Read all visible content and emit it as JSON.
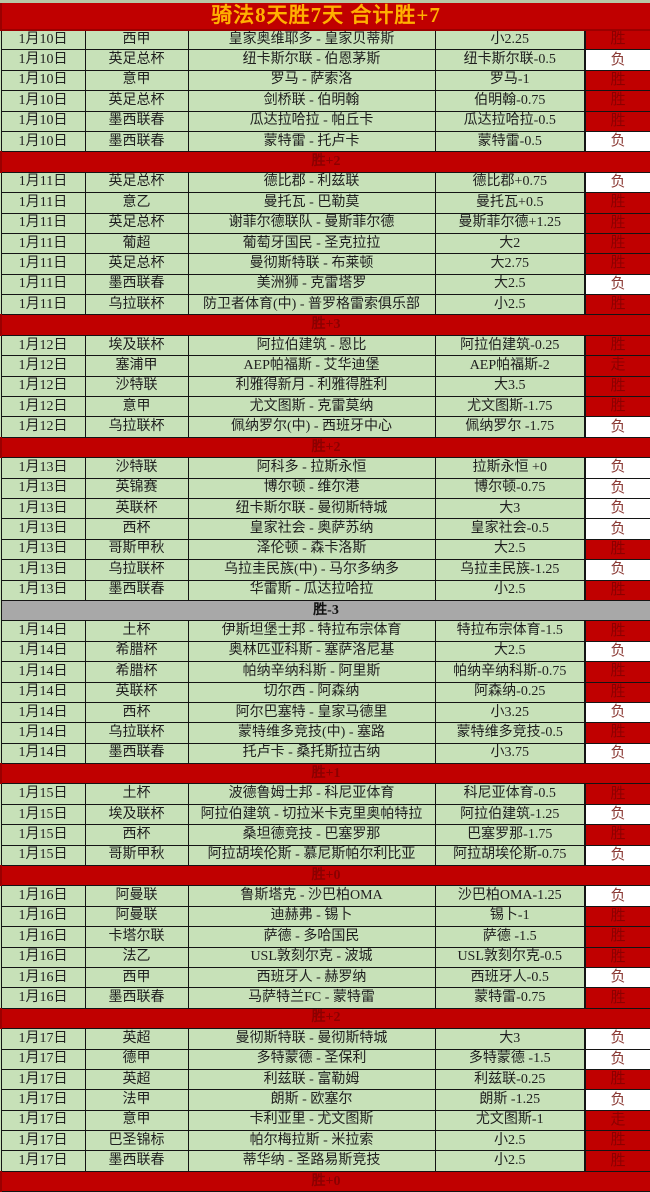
{
  "title": "骑法8天胜7天  合计胜+7",
  "colors": {
    "header_bg": "#c00000",
    "title_text": "#ffb000",
    "row_bg": "#c7e1b8",
    "win_cell_bg": "#c00000",
    "win_text": "#8b0000",
    "loss_cell_bg": "#ffffff",
    "loss_text": "#8a3934",
    "gray_summary_bg": "#a8a8a8"
  },
  "result_legend": {
    "win": "胜",
    "loss": "负",
    "push": "走"
  },
  "sections": [
    {
      "summary": "胜+2",
      "summary_variant": "red",
      "rows": [
        {
          "date": "1月10日",
          "league": "西甲",
          "match": "皇家奥维耶多 - 皇家贝蒂斯",
          "handicap": "小2.25",
          "result": "胜"
        },
        {
          "date": "1月10日",
          "league": "英足总杯",
          "match": "纽卡斯尔联 - 伯恩茅斯",
          "handicap": "纽卡斯尔联-0.5",
          "result": "负"
        },
        {
          "date": "1月10日",
          "league": "意甲",
          "match": "罗马 - 萨索洛",
          "handicap": "罗马-1",
          "result": "胜"
        },
        {
          "date": "1月10日",
          "league": "英足总杯",
          "match": "剑桥联 - 伯明翰",
          "handicap": "伯明翰-0.75",
          "result": "胜"
        },
        {
          "date": "1月10日",
          "league": "墨西联春",
          "match": "瓜达拉哈拉 - 帕丘卡",
          "handicap": "瓜达拉哈拉-0.5",
          "result": "胜"
        },
        {
          "date": "1月10日",
          "league": "墨西联春",
          "match": "蒙特雷 - 托卢卡",
          "handicap": "蒙特雷-0.5",
          "result": "负"
        }
      ]
    },
    {
      "summary": "胜+3",
      "summary_variant": "red",
      "rows": [
        {
          "date": "1月11日",
          "league": "英足总杯",
          "match": "德比郡 - 利兹联",
          "handicap": "德比郡+0.75",
          "result": "负"
        },
        {
          "date": "1月11日",
          "league": "意乙",
          "match": "曼托瓦 - 巴勒莫",
          "handicap": "曼托瓦+0.5",
          "result": "胜"
        },
        {
          "date": "1月11日",
          "league": "英足总杯",
          "match": "谢菲尔德联队 - 曼斯菲尔德",
          "handicap": "曼斯菲尔德+1.25",
          "result": "胜"
        },
        {
          "date": "1月11日",
          "league": "葡超",
          "match": "葡萄牙国民 - 圣克拉拉",
          "handicap": "大2",
          "result": "胜"
        },
        {
          "date": "1月11日",
          "league": "英足总杯",
          "match": "曼彻斯特联 - 布莱顿",
          "handicap": "大2.75",
          "result": "胜"
        },
        {
          "date": "1月11日",
          "league": "墨西联春",
          "match": "美洲狮 - 克雷塔罗",
          "handicap": "大2.5",
          "result": "负"
        },
        {
          "date": "1月11日",
          "league": "乌拉联杯",
          "match": "防卫者体育(中) - 普罗格雷索俱乐部",
          "handicap": "小2.5",
          "result": "胜"
        }
      ]
    },
    {
      "summary": "胜+2",
      "summary_variant": "red",
      "rows": [
        {
          "date": "1月12日",
          "league": "埃及联杯",
          "match": "阿拉伯建筑 - 恩比",
          "handicap": "阿拉伯建筑-0.25",
          "result": "胜"
        },
        {
          "date": "1月12日",
          "league": "塞浦甲",
          "match": "AEP帕福斯 - 艾华迪堡",
          "handicap": "AEP帕福斯-2",
          "result": "走"
        },
        {
          "date": "1月12日",
          "league": "沙特联",
          "match": "利雅得新月 - 利雅得胜利",
          "handicap": "大3.5",
          "result": "胜"
        },
        {
          "date": "1月12日",
          "league": "意甲",
          "match": "尤文图斯 - 克雷莫纳",
          "handicap": "尤文图斯-1.75",
          "result": "胜"
        },
        {
          "date": "1月12日",
          "league": "乌拉联杯",
          "match": "佩纳罗尔(中) - 西班牙中心",
          "handicap": "佩纳罗尔 -1.75",
          "result": "负"
        }
      ]
    },
    {
      "summary": "胜-3",
      "summary_variant": "gray",
      "rows": [
        {
          "date": "1月13日",
          "league": "沙特联",
          "match": "阿科多 - 拉斯永恒",
          "handicap": "拉斯永恒 +0",
          "result": "负"
        },
        {
          "date": "1月13日",
          "league": "英锦赛",
          "match": "博尔顿 - 维尔港",
          "handicap": "博尔顿-0.75",
          "result": "负"
        },
        {
          "date": "1月13日",
          "league": "英联杯",
          "match": "纽卡斯尔联 - 曼彻斯特城",
          "handicap": "大3",
          "result": "负"
        },
        {
          "date": "1月13日",
          "league": "西杯",
          "match": "皇家社会 - 奥萨苏纳",
          "handicap": "皇家社会-0.5",
          "result": "负"
        },
        {
          "date": "1月13日",
          "league": "哥斯甲秋",
          "match": "泽伦顿 - 森卡洛斯",
          "handicap": "大2.5",
          "result": "胜"
        },
        {
          "date": "1月13日",
          "league": "乌拉联杯",
          "match": "乌拉圭民族(中) - 马尔多纳多",
          "handicap": "乌拉圭民族-1.25",
          "result": "负"
        },
        {
          "date": "1月13日",
          "league": "墨西联春",
          "match": "华雷斯 - 瓜达拉哈拉",
          "handicap": "小2.5",
          "result": "胜"
        }
      ]
    },
    {
      "summary": "胜+1",
      "summary_variant": "red",
      "rows": [
        {
          "date": "1月14日",
          "league": "土杯",
          "match": "伊斯坦堡士邦 - 特拉布宗体育",
          "handicap": "特拉布宗体育-1.5",
          "result": "胜"
        },
        {
          "date": "1月14日",
          "league": "希腊杯",
          "match": "奥林匹亚科斯 - 塞萨洛尼基",
          "handicap": "大2.5",
          "result": "负"
        },
        {
          "date": "1月14日",
          "league": "希腊杯",
          "match": "帕纳辛纳科斯 - 阿里斯",
          "handicap": "帕纳辛纳科斯-0.75",
          "result": "胜"
        },
        {
          "date": "1月14日",
          "league": "英联杯",
          "match": "切尔西 - 阿森纳",
          "handicap": "阿森纳-0.25",
          "result": "胜"
        },
        {
          "date": "1月14日",
          "league": "西杯",
          "match": "阿尔巴塞特 - 皇家马德里",
          "handicap": "小3.25",
          "result": "负"
        },
        {
          "date": "1月14日",
          "league": "乌拉联杯",
          "match": "蒙特维多竞技(中) - 塞路",
          "handicap": "蒙特维多竞技-0.5",
          "result": "胜"
        },
        {
          "date": "1月14日",
          "league": "墨西联春",
          "match": "托卢卡 - 桑托斯拉古纳",
          "handicap": "小3.75",
          "result": "负"
        }
      ]
    },
    {
      "summary": "胜+0",
      "summary_variant": "red",
      "rows": [
        {
          "date": "1月15日",
          "league": "土杯",
          "match": "波德鲁姆士邦 - 科尼亚体育",
          "handicap": "科尼亚体育-0.5",
          "result": "胜"
        },
        {
          "date": "1月15日",
          "league": "埃及联杯",
          "match": "阿拉伯建筑 - 切拉米卡克里奥帕特拉",
          "handicap": "阿拉伯建筑-1.25",
          "result": "负"
        },
        {
          "date": "1月15日",
          "league": "西杯",
          "match": "桑坦德竞技 - 巴塞罗那",
          "handicap": "巴塞罗那-1.75",
          "result": "胜"
        },
        {
          "date": "1月15日",
          "league": "哥斯甲秋",
          "match": "阿拉胡埃伦斯 - 慕尼斯帕尔利比亚",
          "handicap": "阿拉胡埃伦斯-0.75",
          "result": "负"
        }
      ]
    },
    {
      "summary": "胜+2",
      "summary_variant": "red",
      "rows": [
        {
          "date": "1月16日",
          "league": "阿曼联",
          "match": "鲁斯塔克 - 沙巴柏OMA",
          "handicap": "沙巴柏OMA-1.25",
          "result": "负"
        },
        {
          "date": "1月16日",
          "league": "阿曼联",
          "match": "迪赫弗 - 锡卜",
          "handicap": "锡卜-1",
          "result": "胜"
        },
        {
          "date": "1月16日",
          "league": "卡塔尔联",
          "match": "萨德 - 多哈国民",
          "handicap": "萨德 -1.5",
          "result": "胜"
        },
        {
          "date": "1月16日",
          "league": "法乙",
          "match": "USL敦刻尔克 - 波城",
          "handicap": "USL敦刻尔克-0.5",
          "result": "胜"
        },
        {
          "date": "1月16日",
          "league": "西甲",
          "match": "西班牙人 - 赫罗纳",
          "handicap": "西班牙人-0.5",
          "result": "负"
        },
        {
          "date": "1月16日",
          "league": "墨西联春",
          "match": "马萨特兰FC - 蒙特雷",
          "handicap": "蒙特雷-0.75",
          "result": "胜"
        }
      ]
    },
    {
      "summary": "胜+0",
      "summary_variant": "red",
      "rows": [
        {
          "date": "1月17日",
          "league": "英超",
          "match": "曼彻斯特联 - 曼彻斯特城",
          "handicap": "大3",
          "result": "负"
        },
        {
          "date": "1月17日",
          "league": "德甲",
          "match": "多特蒙德 - 圣保利",
          "handicap": "多特蒙德 -1.5",
          "result": "负"
        },
        {
          "date": "1月17日",
          "league": "英超",
          "match": "利兹联 - 富勒姆",
          "handicap": "利兹联-0.25",
          "result": "胜"
        },
        {
          "date": "1月17日",
          "league": "法甲",
          "match": "朗斯 - 欧塞尔",
          "handicap": "朗斯 -1.25",
          "result": "负"
        },
        {
          "date": "1月17日",
          "league": "意甲",
          "match": "卡利亚里 - 尤文图斯",
          "handicap": "尤文图斯-1",
          "result": "走"
        },
        {
          "date": "1月17日",
          "league": "巴圣锦标",
          "match": "帕尔梅拉斯 - 米拉索",
          "handicap": "小2.5",
          "result": "胜"
        },
        {
          "date": "1月17日",
          "league": "墨西联春",
          "match": "蒂华纳 - 圣路易斯竞技",
          "handicap": "小2.5",
          "result": "胜"
        }
      ]
    }
  ]
}
